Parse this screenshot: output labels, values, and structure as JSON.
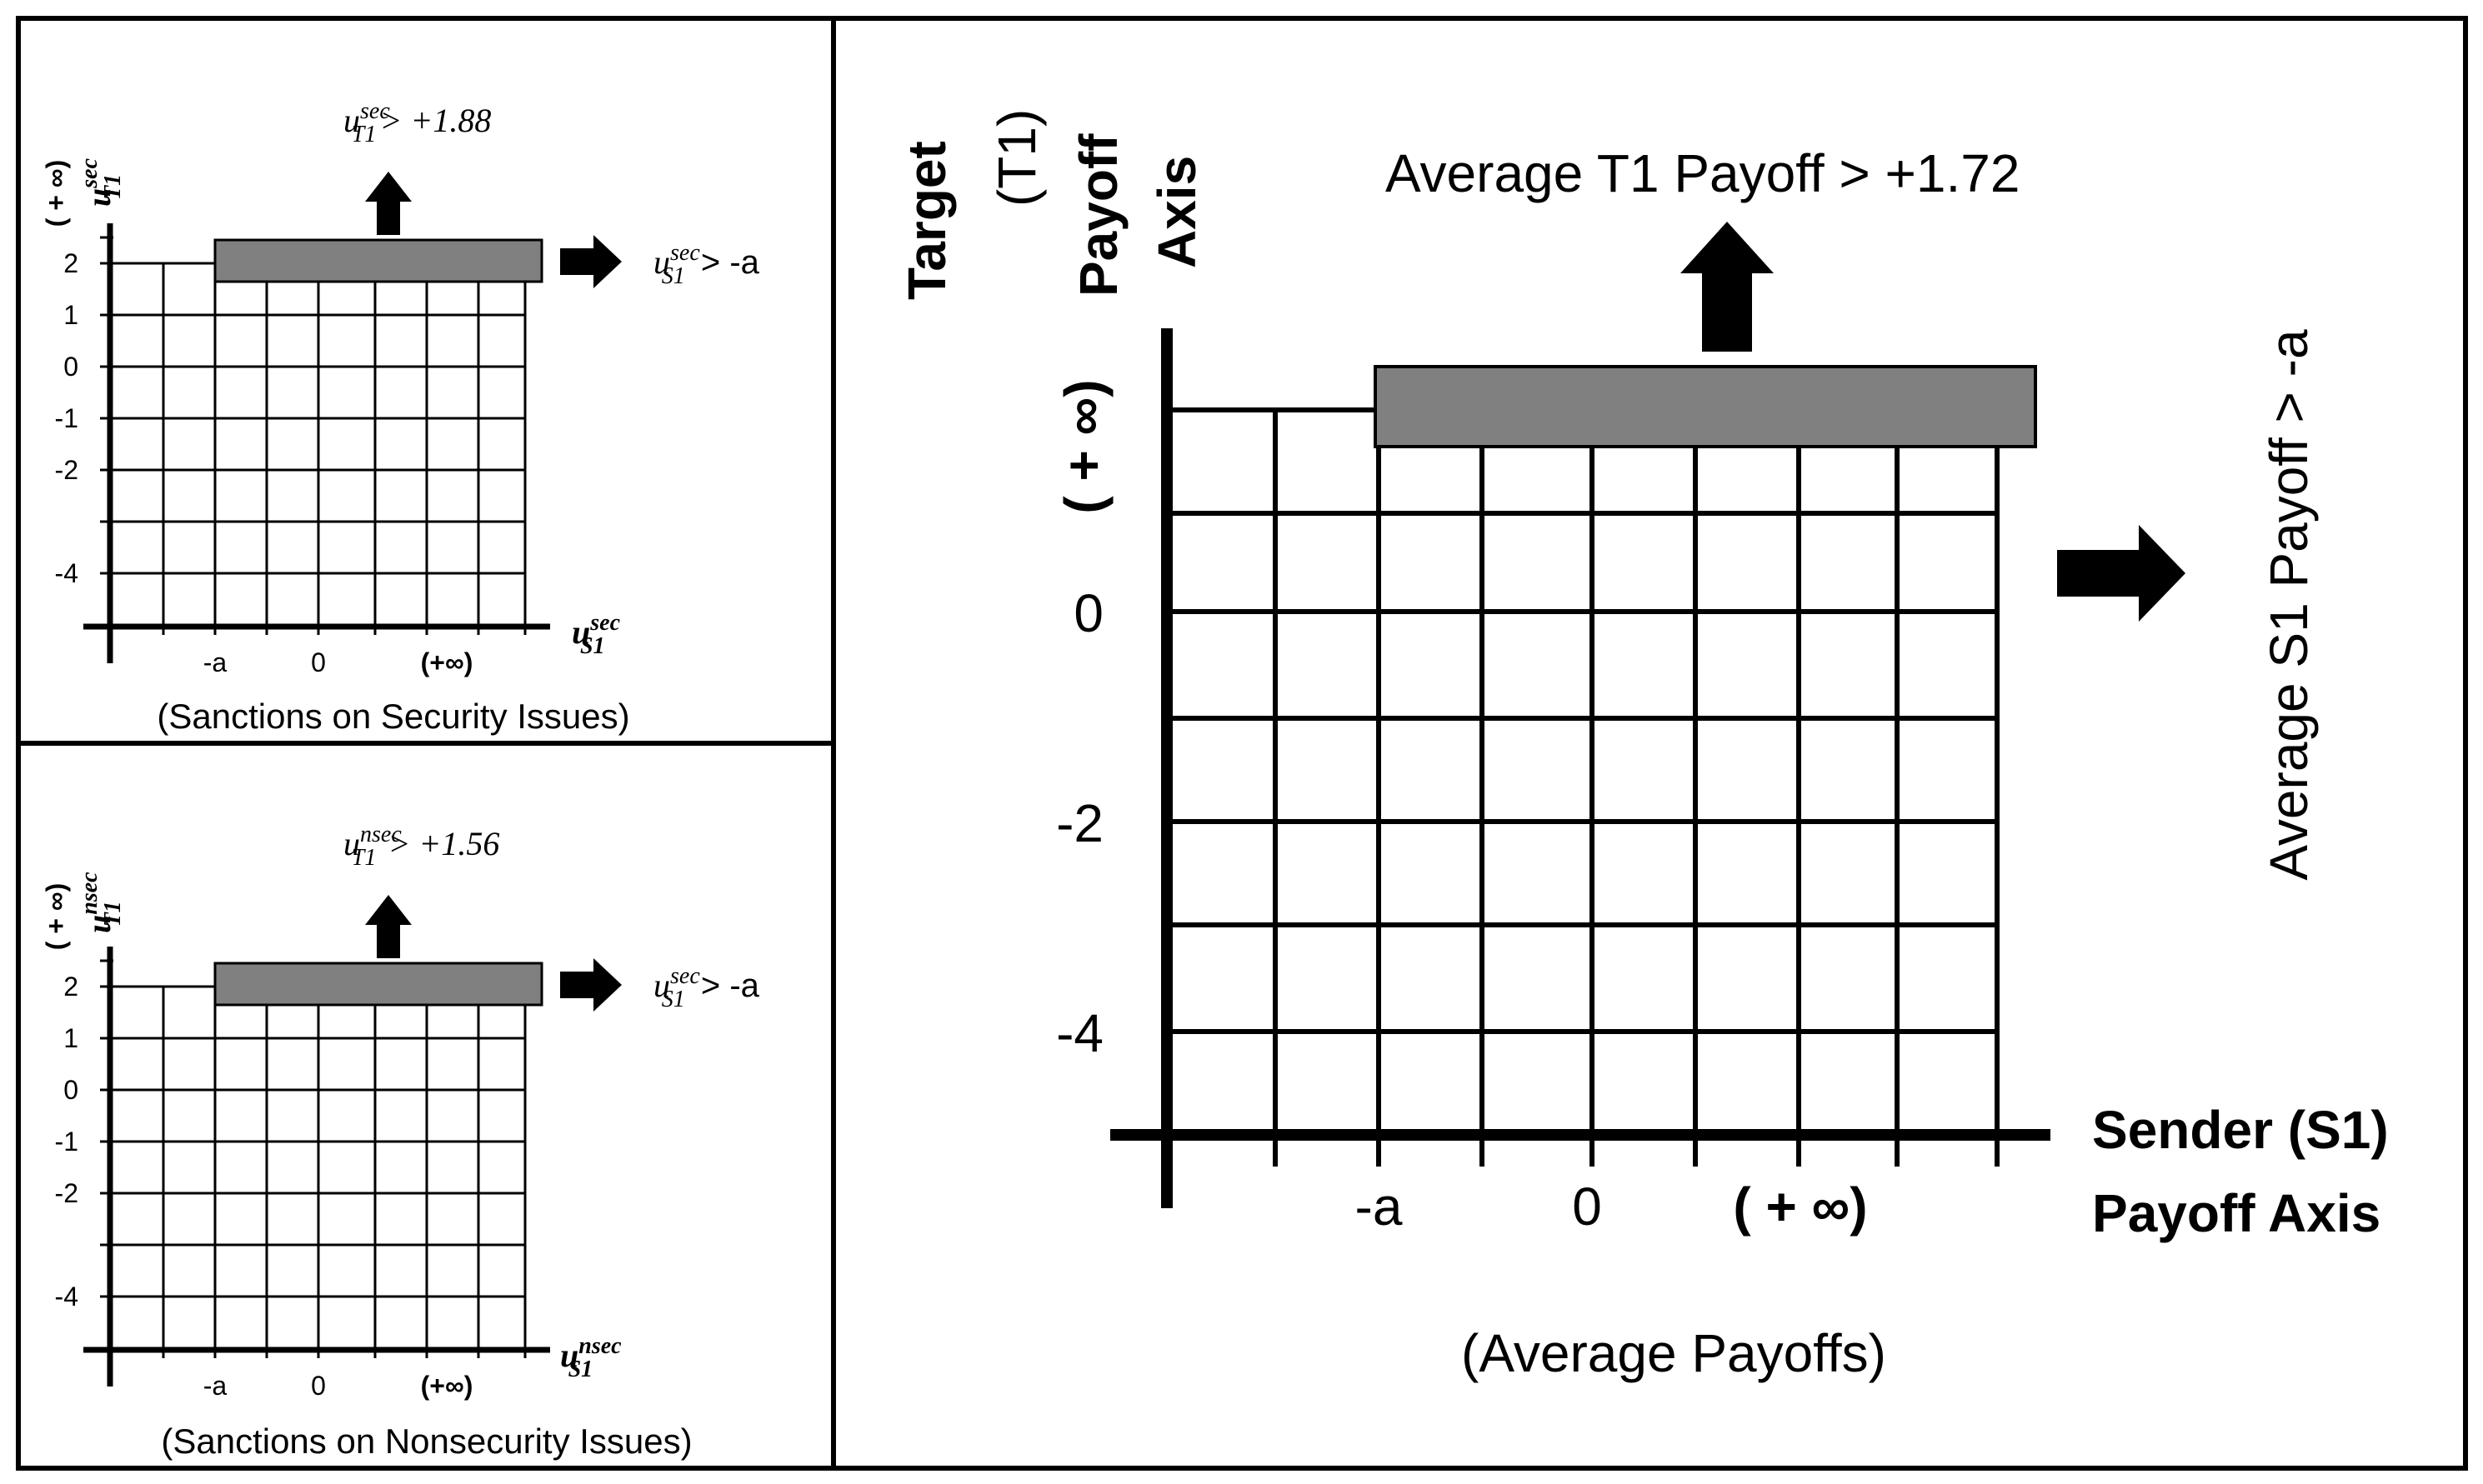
{
  "panels": {
    "security": {
      "caption": "(Sanctions on Security Issues)",
      "y_axis_label": {
        "base": "u",
        "sup": "sec",
        "sub": "T1"
      },
      "y_infinity_label": "( + ∞)",
      "x_axis_label": {
        "base": "u",
        "sup": "sec",
        "sub": "S1"
      },
      "y_ticks": [
        "2",
        "1",
        "0",
        "-1",
        "-2",
        "-4"
      ],
      "x_ticks": [
        "-a",
        "0",
        "(+∞)"
      ],
      "up_condition": {
        "base": "u",
        "sup": "sec",
        "sub": "T1",
        "rest": "> +1.88"
      },
      "right_condition": {
        "base": "u",
        "sup": "sec",
        "sub": "S1",
        "rest": " > -a"
      }
    },
    "nonsecurity": {
      "caption": "(Sanctions on Nonsecurity Issues)",
      "y_axis_label": {
        "base": "u",
        "sup": "nsec",
        "sub": "T1"
      },
      "y_infinity_label": "( + ∞)",
      "x_axis_label": {
        "base": "u",
        "sup": "nsec",
        "sub": "S1"
      },
      "y_ticks": [
        "2",
        "1",
        "0",
        "-1",
        "-2",
        "-4"
      ],
      "x_ticks": [
        "-a",
        "0",
        "(+∞)"
      ],
      "up_condition": {
        "base": "u",
        "sup": "nsec",
        "sub": "T1",
        "rest": "> +1.56"
      },
      "right_condition": {
        "base": "u",
        "sup": "sec",
        "sub": "S1",
        "rest": " > -a"
      }
    },
    "average": {
      "caption": "(Average Payoffs)",
      "y_axis_label_lines": [
        "Target",
        "(T1)",
        "Payoff",
        "Axis"
      ],
      "y_infinity_label": "( + ∞)",
      "x_axis_label_lines": [
        "Sender (S1)",
        "Payoff Axis"
      ],
      "y_ticks": [
        "0",
        "-2",
        "-4"
      ],
      "x_ticks": [
        "-a",
        "0",
        "( + ∞)"
      ],
      "up_condition": "Average T1 Payoff > +1.72",
      "right_condition": "Average S1 Payoff > -a"
    }
  },
  "colors": {
    "shaded_region": "#808080",
    "lines": "#000000",
    "background": "#ffffff"
  }
}
